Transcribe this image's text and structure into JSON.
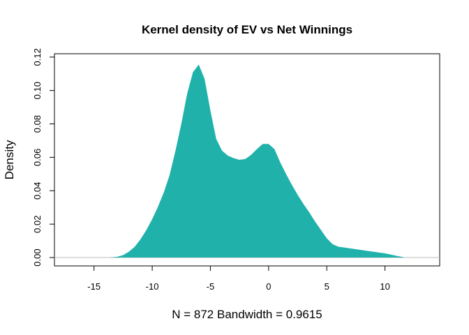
{
  "chart_data": {
    "type": "area",
    "title": "Kernel density of EV vs Net Winnings",
    "xlabel": "N = 872   Bandwidth = 0.9615",
    "ylabel": "Density",
    "xlim": [
      -18.4,
      14.7
    ],
    "ylim": [
      -0.005,
      0.122
    ],
    "xticks": [
      -15,
      -10,
      -5,
      0,
      5,
      10
    ],
    "xtick_labels": [
      "-15",
      "-10",
      "-5",
      "0",
      "5",
      "10"
    ],
    "yticks": [
      0.0,
      0.02,
      0.04,
      0.06,
      0.08,
      0.1,
      0.12
    ],
    "ytick_labels": [
      "0.00",
      "0.02",
      "0.04",
      "0.06",
      "0.08",
      "0.10",
      "0.12"
    ],
    "fill_color": "#20B2AA",
    "baseline_color": "#BEBEBE",
    "grid": false,
    "series": [
      {
        "x": [
          -13.7,
          -13.0,
          -12.5,
          -12.0,
          -11.5,
          -11.0,
          -10.5,
          -10.0,
          -9.5,
          -9.0,
          -8.5,
          -8.0,
          -7.5,
          -7.0,
          -6.5,
          -6.0,
          -5.5,
          -5.0,
          -4.5,
          -4.0,
          -3.5,
          -3.0,
          -2.5,
          -2.0,
          -1.5,
          -1.0,
          -0.5,
          0.0,
          0.5,
          1.0,
          1.5,
          2.0,
          2.5,
          3.0,
          3.5,
          4.0,
          4.5,
          5.0,
          5.5,
          6.0,
          6.5,
          7.0,
          7.5,
          8.0,
          8.5,
          9.0,
          9.5,
          10.0,
          10.5,
          11.0,
          11.6
        ],
        "y": [
          0.0,
          0.0005,
          0.0015,
          0.0035,
          0.0065,
          0.011,
          0.0165,
          0.023,
          0.0305,
          0.039,
          0.0495,
          0.064,
          0.08,
          0.098,
          0.111,
          0.1155,
          0.107,
          0.088,
          0.071,
          0.064,
          0.061,
          0.0595,
          0.0585,
          0.059,
          0.0615,
          0.065,
          0.068,
          0.068,
          0.065,
          0.057,
          0.05,
          0.0435,
          0.0375,
          0.032,
          0.027,
          0.0215,
          0.0165,
          0.0115,
          0.008,
          0.0065,
          0.006,
          0.0055,
          0.005,
          0.0045,
          0.004,
          0.0035,
          0.003,
          0.0025,
          0.0018,
          0.001,
          0.0002
        ]
      }
    ]
  }
}
